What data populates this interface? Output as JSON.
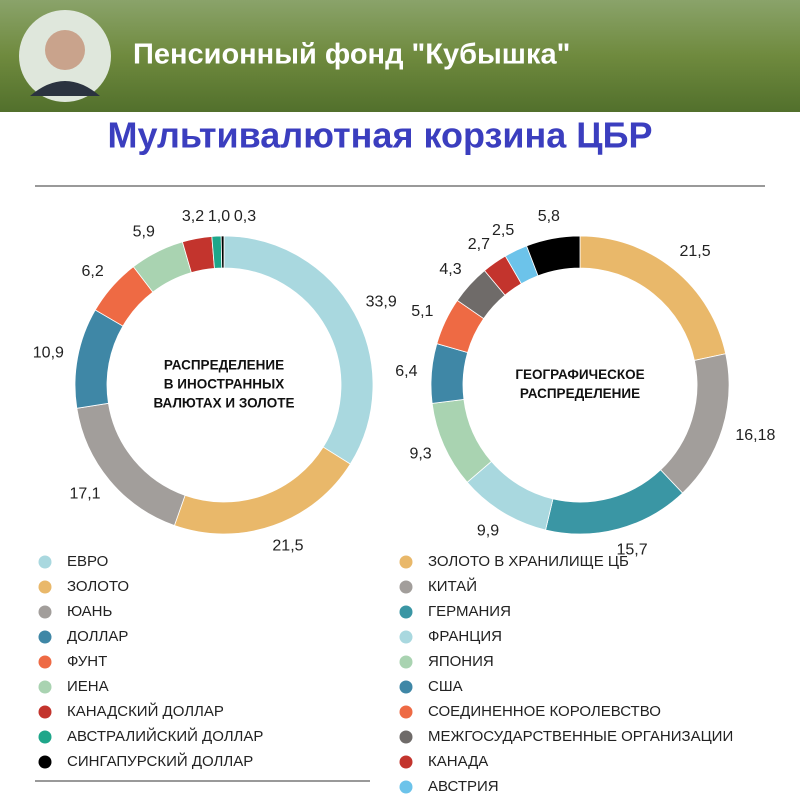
{
  "header": {
    "title": "Пенсионный фонд \"Кубышка\""
  },
  "title": "Мультивалютная корзина ЦБР",
  "chart_data": [
    {
      "type": "pie",
      "donut": true,
      "center_label": [
        "РАСПРЕДЕЛЕНИЕ",
        "В ИНОСТРАННЫХ",
        "ВАЛЮТАХ И ЗОЛОТЕ"
      ],
      "categories": [
        "ЕВРО",
        "ЗОЛОТО",
        "ЮАНЬ",
        "ДОЛЛАР",
        "ФУНТ",
        "ИЕНА",
        "КАНАДСКИЙ ДОЛЛАР",
        "АВСТРАЛИЙСКИЙ ДОЛЛАР",
        "СИНГАПУРСКИЙ ДОЛЛАР"
      ],
      "values": [
        33.9,
        21.5,
        17.1,
        10.9,
        6.2,
        5.9,
        3.2,
        1.0,
        0.3
      ],
      "value_labels": [
        "33,9",
        "21,5",
        "17,1",
        "10,9",
        "6,2",
        "5,9",
        "3,2",
        "1,0",
        "0,3"
      ],
      "colors": [
        "#a9d8df",
        "#e9b86a",
        "#a29e9b",
        "#3f87a6",
        "#ee6a44",
        "#a9d3b1",
        "#c3342d",
        "#1ea68a",
        "#000000"
      ]
    },
    {
      "type": "pie",
      "donut": true,
      "center_label": [
        "ГЕОГРАФИЧЕСКОЕ",
        "РАСПРЕДЕЛЕНИЕ"
      ],
      "categories": [
        "ЗОЛОТО В ХРАНИЛИЩЕ ЦБ",
        "КИТАЙ",
        "ГЕРМАНИЯ",
        "ФРАНЦИЯ",
        "ЯПОНИЯ",
        "США",
        "СОЕДИНЕННОЕ КОРОЛЕВСТВО",
        "МЕЖГОСУДАРСТВЕННЫЕ ОРГАНИЗАЦИИ",
        "КАНАДА",
        "АВСТРИЯ",
        null
      ],
      "values": [
        21.5,
        16.18,
        15.7,
        9.9,
        9.3,
        6.4,
        5.1,
        4.3,
        2.7,
        2.5,
        5.8
      ],
      "value_labels": [
        "21,5",
        "16,18",
        "15,7",
        "9,9",
        "9,3",
        "6,4",
        "5,1",
        "4,3",
        "2,7",
        "2,5",
        "5,8"
      ],
      "colors": [
        "#e9b86a",
        "#a29e9b",
        "#3a96a4",
        "#a9d8df",
        "#a9d3b1",
        "#3f87a6",
        "#ee6a44",
        "#6f6b69",
        "#c3342d",
        "#6cc3ea",
        "#000000"
      ]
    }
  ]
}
